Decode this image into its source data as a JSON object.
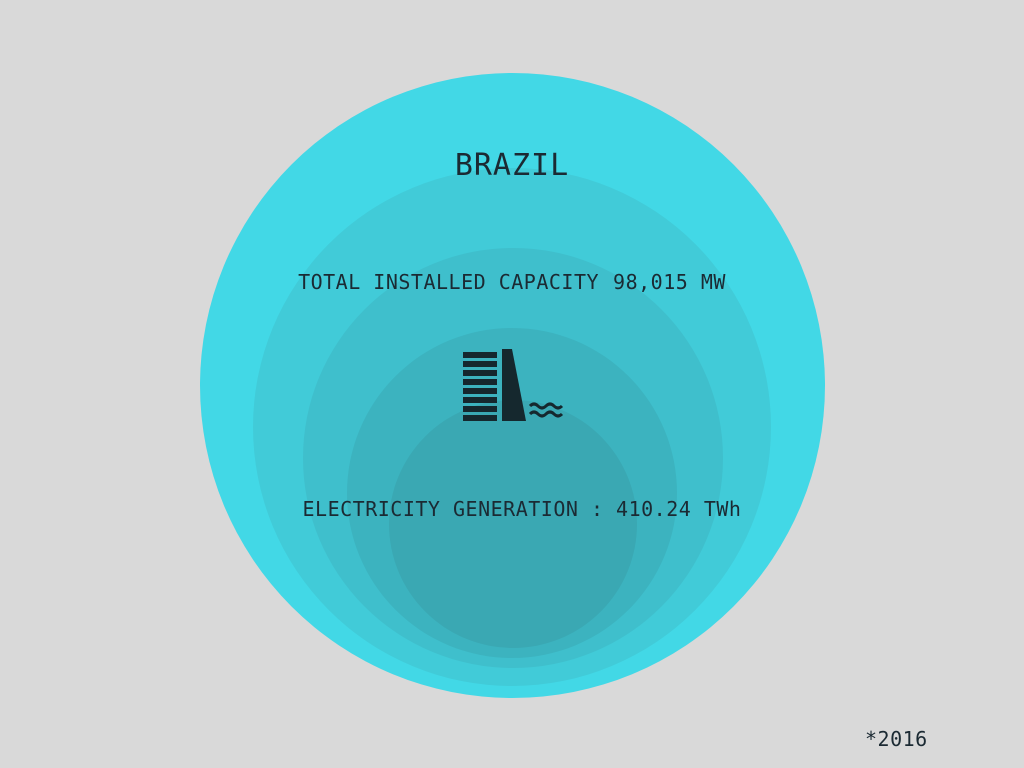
{
  "title": "BRAZIL",
  "capacity": {
    "label": "TOTAL INSTALLED CAPACITY",
    "value": "98,015 MW"
  },
  "generation": {
    "label": "ELECTRICITY GENERATION :",
    "value": "410.24 TWh"
  },
  "icon": "hydro-dam-icon",
  "footnote": "*2016",
  "colors": {
    "background": "#d9d9d9",
    "outer_circle": "#42d8e6",
    "inner_circle": "#3aa8b3",
    "text": "#1b2a33"
  }
}
